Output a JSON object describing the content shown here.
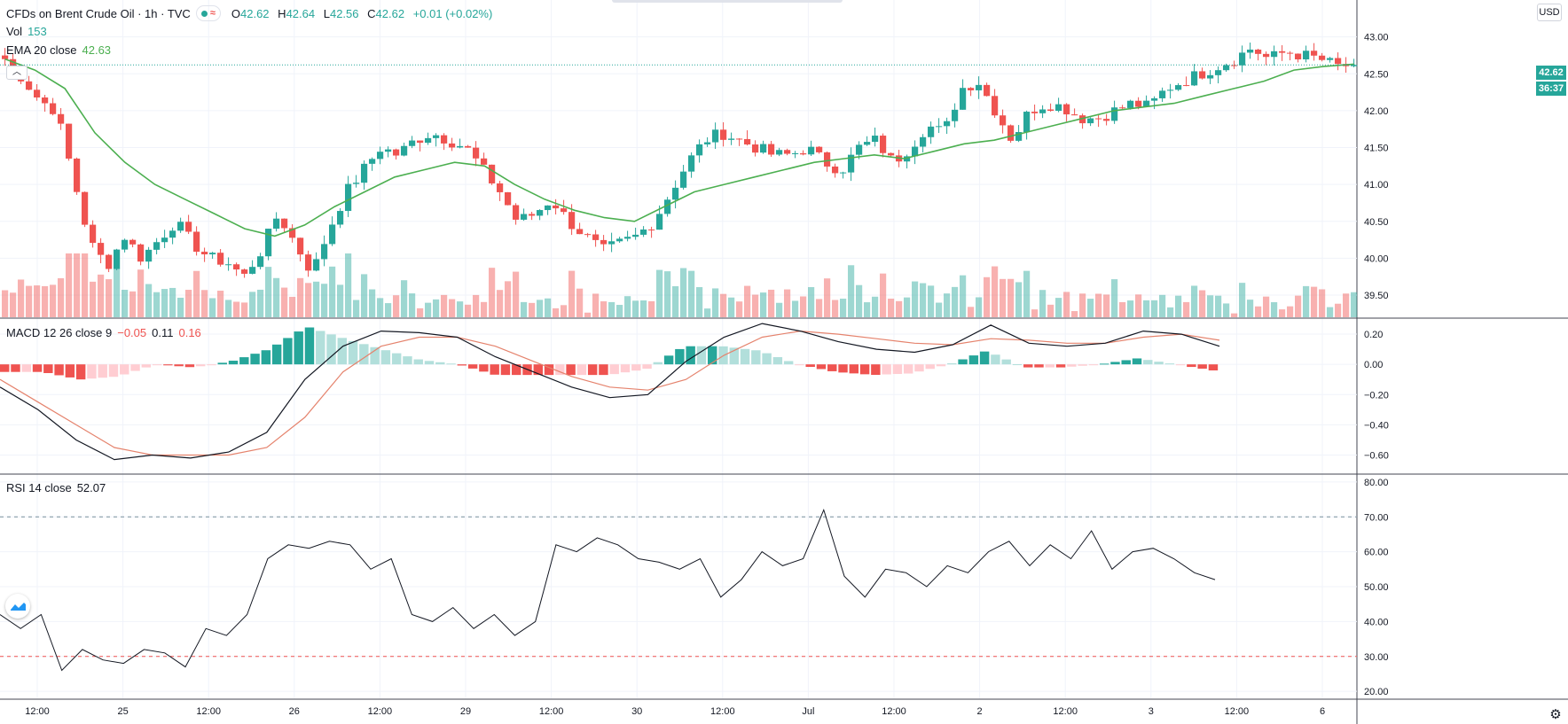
{
  "header": {
    "symbol": "CFDs on Brent Crude Oil · 1h · TVC",
    "ohlc": [
      {
        "k": "O",
        "v": "42.62"
      },
      {
        "k": "H",
        "v": "42.64"
      },
      {
        "k": "L",
        "v": "42.56"
      },
      {
        "k": "C",
        "v": "42.62"
      }
    ],
    "change": "+0.01 (+0.02%)"
  },
  "vol_legend": {
    "label": "Vol",
    "value": "153"
  },
  "ema_legend": {
    "label": "EMA 20 close",
    "value": "42.63"
  },
  "macd_legend": {
    "label": "MACD 12 26 close 9",
    "v1": "−0.05",
    "v2": "0.11",
    "v3": "0.16"
  },
  "rsi_legend": {
    "label": "RSI 14 close",
    "value": "52.07"
  },
  "currency": "USD",
  "last_price": "42.62",
  "countdown": "36:37",
  "colors": {
    "up": "#26a69a",
    "down": "#ef5350",
    "ema": "#4caf50",
    "macd": "#131722",
    "signal": "#e5836d"
  },
  "chart_data": [
    {
      "type": "candlestick",
      "title": "CFDs on Brent Crude Oil · 1h · TVC",
      "x_tick_labels": [
        "12:00",
        "25",
        "12:00",
        "26",
        "12:00",
        "29",
        "12:00",
        "30",
        "12:00",
        "Jul",
        "12:00",
        "2",
        "12:00",
        "3",
        "12:00",
        "6"
      ],
      "y_tick_labels": [
        "43.00",
        "42.50",
        "42.00",
        "41.50",
        "41.00",
        "40.50",
        "40.00",
        "39.50"
      ],
      "ylim": [
        39.2,
        43.5
      ],
      "close_path": [
        42.7,
        42.45,
        42.15,
        42.0,
        41.1,
        40.2,
        39.9,
        40.3,
        40.0,
        40.25,
        40.5,
        40.2,
        40.0,
        39.95,
        39.75,
        40.1,
        40.6,
        40.2,
        39.8,
        40.4,
        40.9,
        41.2,
        41.5,
        41.4,
        41.6,
        41.7,
        41.6,
        41.5,
        41.2,
        40.9,
        40.5,
        40.6,
        40.8,
        40.5,
        40.3,
        40.1,
        40.2,
        40.3,
        40.5,
        40.9,
        41.3,
        41.6,
        41.7,
        41.6,
        41.5,
        41.4,
        41.4,
        41.5,
        41.3,
        41.2,
        41.5,
        41.6,
        41.3,
        41.5,
        41.8,
        41.7,
        42.3,
        42.4,
        42.0,
        41.6,
        42.0,
        42.1,
        42.05,
        41.9,
        41.9,
        42.0,
        42.1,
        42.05,
        42.3,
        42.4,
        42.5,
        42.6,
        42.7,
        42.85,
        42.7,
        42.8,
        42.75,
        42.7,
        42.6,
        42.62
      ],
      "ema20_path": [
        42.7,
        42.55,
        42.3,
        41.7,
        41.3,
        41.0,
        40.8,
        40.6,
        40.4,
        40.3,
        40.45,
        40.7,
        40.9,
        41.1,
        41.2,
        41.3,
        41.25,
        41.0,
        40.8,
        40.65,
        40.55,
        40.5,
        40.7,
        40.9,
        41.0,
        41.1,
        41.2,
        41.3,
        41.35,
        41.4,
        41.35,
        41.45,
        41.55,
        41.6,
        41.7,
        41.8,
        41.9,
        42.0,
        42.05,
        42.1,
        42.2,
        42.3,
        42.4,
        42.55,
        42.6,
        42.63
      ],
      "volume": {
        "label": "Vol",
        "last": 153
      }
    },
    {
      "type": "line",
      "title": "MACD 12 26 close 9",
      "series": [
        {
          "name": "MACD",
          "values": [
            -0.15,
            -0.3,
            -0.5,
            -0.63,
            -0.6,
            -0.62,
            -0.58,
            -0.45,
            -0.1,
            0.12,
            0.22,
            0.21,
            0.18,
            0.05,
            -0.05,
            -0.15,
            -0.22,
            -0.2,
            0.02,
            0.18,
            0.27,
            0.22,
            0.15,
            0.1,
            0.08,
            0.13,
            0.26,
            0.14,
            0.12,
            0.14,
            0.22,
            0.2,
            0.12
          ]
        },
        {
          "name": "Signal",
          "values": [
            -0.1,
            -0.25,
            -0.4,
            -0.55,
            -0.6,
            -0.6,
            -0.6,
            -0.55,
            -0.35,
            -0.05,
            0.12,
            0.18,
            0.18,
            0.12,
            0.02,
            -0.08,
            -0.15,
            -0.17,
            -0.1,
            0.06,
            0.18,
            0.22,
            0.2,
            0.17,
            0.14,
            0.13,
            0.17,
            0.16,
            0.14,
            0.14,
            0.18,
            0.2,
            0.16
          ]
        }
      ],
      "histogram_sign_pattern": "neg-neg-pos-pos-neg-pos-neg-pos-neg",
      "y_tick_labels": [
        "0.20",
        "0.00",
        "−0.20",
        "−0.40",
        "−0.60"
      ],
      "ylim": [
        -0.72,
        0.3
      ]
    },
    {
      "type": "line",
      "title": "RSI 14 close",
      "values": [
        42,
        38,
        42,
        26,
        32,
        29,
        28,
        32,
        31,
        27,
        38,
        36,
        42,
        58,
        62,
        61,
        63,
        62,
        55,
        58,
        42,
        40,
        44,
        38,
        42,
        36,
        40,
        62,
        60,
        64,
        62,
        58,
        57,
        55,
        58,
        47,
        52,
        60,
        56,
        58,
        72,
        53,
        47,
        55,
        54,
        50,
        56,
        54,
        60,
        63,
        56,
        62,
        58,
        66,
        55,
        60,
        61,
        58,
        54,
        52
      ],
      "y_tick_labels": [
        "80.00",
        "70.00",
        "60.00",
        "50.00",
        "40.00",
        "30.00",
        "20.00"
      ],
      "ylim": [
        18,
        82
      ],
      "bands": [
        70,
        30
      ]
    }
  ]
}
